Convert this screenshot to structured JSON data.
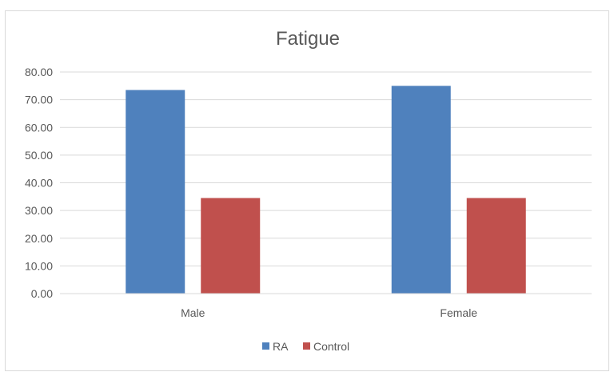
{
  "chart_data": {
    "type": "bar",
    "title": "Fatigue",
    "xlabel": "",
    "ylabel": "",
    "categories": [
      "Male",
      "Female"
    ],
    "series": [
      {
        "name": "RA",
        "values": [
          73.5,
          75.0
        ],
        "color": "#4f81bd"
      },
      {
        "name": "Control",
        "values": [
          34.5,
          34.5
        ],
        "color": "#c0504d"
      }
    ],
    "ylim": [
      0,
      80
    ],
    "yticks": [
      "0.00",
      "10.00",
      "20.00",
      "30.00",
      "40.00",
      "50.00",
      "60.00",
      "70.00",
      "80.00"
    ],
    "grid": true,
    "legend_position": "bottom"
  }
}
